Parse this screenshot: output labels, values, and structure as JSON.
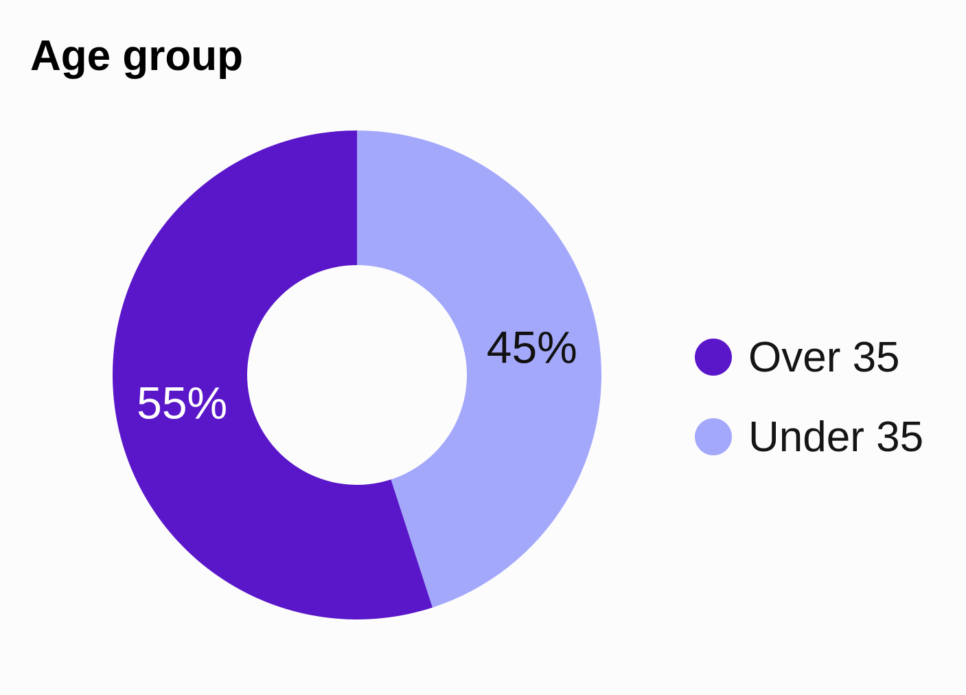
{
  "chart_data": {
    "type": "pie",
    "variant": "donut",
    "title": "Age group",
    "categories": [
      "Over 35",
      "Under 35"
    ],
    "values": [
      55,
      45
    ],
    "value_labels": [
      "55%",
      "45%"
    ],
    "colors": [
      "#5a17c9",
      "#a3a8fb"
    ],
    "label_colors": [
      "#ffffff",
      "#111111"
    ],
    "legend_position": "right",
    "start_angle_deg": 0,
    "direction": "counterclockwise"
  }
}
